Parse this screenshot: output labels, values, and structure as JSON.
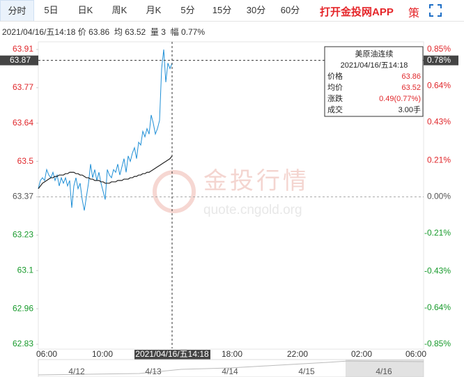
{
  "toolbar": {
    "tabs": [
      "分时",
      "5日",
      "日K",
      "周K",
      "月K",
      "5分",
      "15分",
      "30分",
      "60分"
    ],
    "app_link": "打开金投网APP",
    "strategy": "策"
  },
  "info_line": {
    "time": "2021/04/16/五14:18",
    "price_label": "价",
    "price": "63.86",
    "avg_label": "均",
    "avg": "63.52",
    "vol_label": "量",
    "vol": "3",
    "amp_label": "幅",
    "amp": "0.77%"
  },
  "chart_data": {
    "type": "line",
    "ylim": [
      62.83,
      63.91
    ],
    "yticks": [
      63.91,
      63.77,
      63.64,
      63.5,
      63.37,
      63.23,
      63.1,
      62.96,
      62.83
    ],
    "y2lim": [
      -0.85,
      0.85
    ],
    "y2ticks": [
      {
        "value": 0.85,
        "label": "0.85%"
      },
      {
        "value": 0.64,
        "label": "0.64%"
      },
      {
        "value": 0.43,
        "label": "0.43%"
      },
      {
        "value": 0.21,
        "label": "0.21%"
      },
      {
        "value": 0,
        "label": "0.00%"
      },
      {
        "value": -0.21,
        "label": "-0.21%"
      },
      {
        "value": -0.43,
        "label": "-0.43%"
      },
      {
        "value": -0.64,
        "label": "-0.64%"
      },
      {
        "value": -0.85,
        "label": "-0.85%"
      }
    ],
    "x_labels": [
      "06:00",
      "10:00",
      "18:00",
      "22:00",
      "02:00",
      "06:00"
    ],
    "series": [
      {
        "color": "#1f8fd6",
        "values": [
          63.4,
          63.43,
          63.44,
          63.43,
          63.47,
          63.45,
          63.44,
          63.46,
          63.43,
          63.45,
          63.41,
          63.44,
          63.42,
          63.44,
          63.41,
          63.43,
          63.33,
          63.41,
          63.44,
          63.4,
          63.42,
          63.36,
          63.32,
          63.37,
          63.42,
          63.49,
          63.44,
          63.47,
          63.43,
          63.46,
          63.42,
          63.39,
          63.36,
          63.47,
          63.45,
          63.44,
          63.47,
          63.46,
          63.49,
          63.45,
          63.48,
          63.51,
          63.46,
          63.52,
          63.5,
          63.53,
          63.55,
          63.51,
          63.57,
          63.56,
          63.61,
          63.59,
          63.62,
          63.6,
          63.67,
          63.64,
          63.6,
          63.62,
          63.65,
          63.84,
          63.91,
          63.79,
          63.86,
          63.84,
          63.86
        ]
      },
      {
        "color": "#222222",
        "values": [
          63.4,
          63.41,
          63.42,
          63.425,
          63.43,
          63.435,
          63.44,
          63.44,
          63.445,
          63.445,
          63.45,
          63.45,
          63.45,
          63.455,
          63.455,
          63.46,
          63.46,
          63.46,
          63.455,
          63.455,
          63.45,
          63.45,
          63.445,
          63.44,
          63.44,
          63.435,
          63.435,
          63.43,
          63.43,
          63.43,
          63.425,
          63.425,
          63.42,
          63.42,
          63.42,
          63.425,
          63.425,
          63.425,
          63.43,
          63.43,
          63.43,
          63.435,
          63.435,
          63.435,
          63.44,
          63.44,
          63.445,
          63.445,
          63.45,
          63.45,
          63.455,
          63.455,
          63.46,
          63.46,
          63.465,
          63.47,
          63.475,
          63.48,
          63.485,
          63.49,
          63.495,
          63.5,
          63.505,
          63.51,
          63.52
        ]
      }
    ]
  },
  "cursor": {
    "time": "2021/04/16/五14:18",
    "price": 63.87,
    "pct": {
      "value": 0.78,
      "label": "0.78%"
    }
  },
  "tooltip": {
    "title": "美原油连续",
    "time": "2021/04/16/五14:18",
    "rows": [
      [
        "价格",
        "63.86"
      ],
      [
        "均价",
        "63.52"
      ],
      [
        "涨跌",
        "0.49(0.77%)"
      ],
      [
        "成交",
        "3.00手"
      ]
    ]
  },
  "watermark": {
    "brand": "金投行情",
    "url": "quote.cngold.org"
  },
  "navigator": {
    "labels": [
      "4/12",
      "4/13",
      "4/14",
      "4/15",
      "4/16"
    ]
  }
}
